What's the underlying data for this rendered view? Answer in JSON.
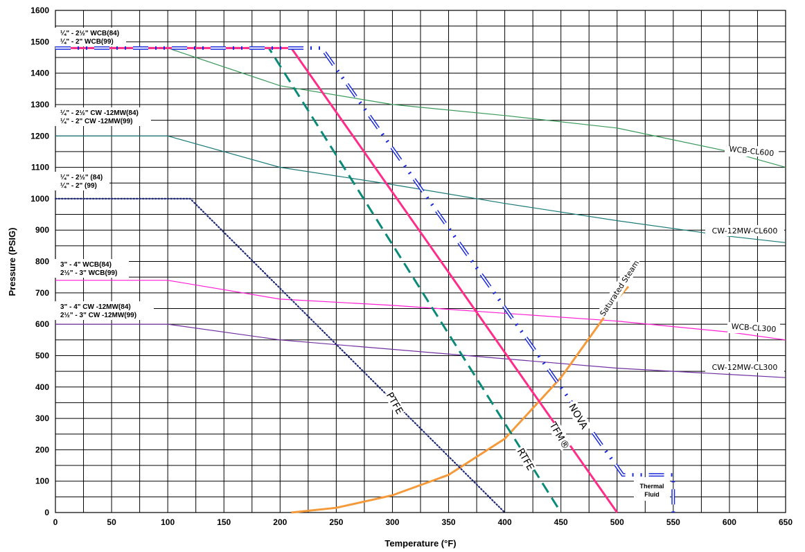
{
  "chart_data": {
    "type": "line",
    "xlabel": "Temperature (°F)",
    "ylabel": "Pressure (PSIG)",
    "xlim": [
      0,
      650
    ],
    "ylim": [
      0,
      1600
    ],
    "x_ticks": [
      "0",
      "50",
      "100",
      "150",
      "200",
      "250",
      "300",
      "350",
      "400",
      "450",
      "500",
      "550",
      "600",
      "650"
    ],
    "y_ticks": [
      "0",
      "100",
      "200",
      "300",
      "400",
      "500",
      "600",
      "700",
      "800",
      "900",
      "1000",
      "1100",
      "1200",
      "1300",
      "1400",
      "1500",
      "1600"
    ],
    "grid": true,
    "series": [
      {
        "name": "WCB-CL600",
        "color": "#3a9a5a",
        "style": "solid",
        "x": [
          0,
          100,
          200,
          300,
          400,
          500,
          600,
          650
        ],
        "y": [
          1480,
          1480,
          1360,
          1300,
          1265,
          1225,
          1150,
          1100
        ]
      },
      {
        "name": "CW-12MW-CL600",
        "color": "#1a7a78",
        "style": "solid",
        "x": [
          0,
          100,
          200,
          300,
          400,
          500,
          600,
          650
        ],
        "y": [
          1200,
          1200,
          1100,
          1045,
          985,
          930,
          880,
          860
        ]
      },
      {
        "name": "WCB-CL300",
        "color": "#ff1ed2",
        "style": "solid",
        "x": [
          0,
          100,
          200,
          300,
          400,
          500,
          600,
          650
        ],
        "y": [
          740,
          740,
          680,
          660,
          635,
          610,
          575,
          550
        ]
      },
      {
        "name": "CW-12MW-CL300",
        "color": "#7030a0",
        "style": "solid",
        "x": [
          0,
          100,
          200,
          300,
          400,
          500,
          600,
          650
        ],
        "y": [
          600,
          600,
          550,
          520,
          490,
          460,
          440,
          430
        ]
      },
      {
        "name": "PTFE",
        "color": "#1f2a7a",
        "style": "dotted",
        "x": [
          0,
          120,
          400
        ],
        "y": [
          1000,
          1000,
          0
        ]
      },
      {
        "name": "RTFE",
        "color": "#0a8a78",
        "style": "dashed",
        "x": [
          0,
          190,
          450
        ],
        "y": [
          1480,
          1480,
          0
        ]
      },
      {
        "name": "TFM®",
        "color": "#ff2d8a",
        "style": "solid",
        "x": [
          0,
          210,
          500
        ],
        "y": [
          1480,
          1480,
          0
        ]
      },
      {
        "name": "NOVA",
        "color": "#1a2adb",
        "style": "dashdot",
        "x": [
          0,
          237,
          505,
          550,
          550
        ],
        "y": [
          1480,
          1480,
          120,
          120,
          0
        ]
      },
      {
        "name": "Saturated Steam",
        "color": "#f59a3a",
        "style": "solid",
        "x": [
          210,
          250,
          300,
          350,
          400,
          450,
          500,
          510
        ],
        "y": [
          0,
          15,
          55,
          120,
          235,
          430,
          680,
          720
        ]
      }
    ],
    "labels": {
      "wcb_cl600": "WCB-CL600",
      "cw_cl600": "CW-12MW-CL600",
      "wcb_cl300": "WCB-CL300",
      "cw_cl300": "CW-12MW-CL300",
      "ptfe": "PTFE",
      "rtfe": "RTFE",
      "tfm": "TFM®",
      "nova": "NOVA",
      "steam": "Saturated Steam",
      "thermal_1": "Thermal",
      "thermal_2": "Fluid"
    },
    "annotations": [
      {
        "line1": "¼\" - 2½\" WCB(84)",
        "line2": "¼\" - 2\" WCB(99)"
      },
      {
        "line1": "¼\" - 2½\" CW -12MW(84)",
        "line2": "¼\" - 2\" CW -12MW(99)"
      },
      {
        "line1": "¼\" - 2½\" (84)",
        "line2": "¼\" - 2\" (99)"
      },
      {
        "line1": "3\" - 4\" WCB(84)",
        "line2": "2½\" - 3\" WCB(99)"
      },
      {
        "line1": "3\" - 4\" CW -12MW(84)",
        "line2": "2½\" - 3\" CW -12MW(99)"
      }
    ]
  }
}
